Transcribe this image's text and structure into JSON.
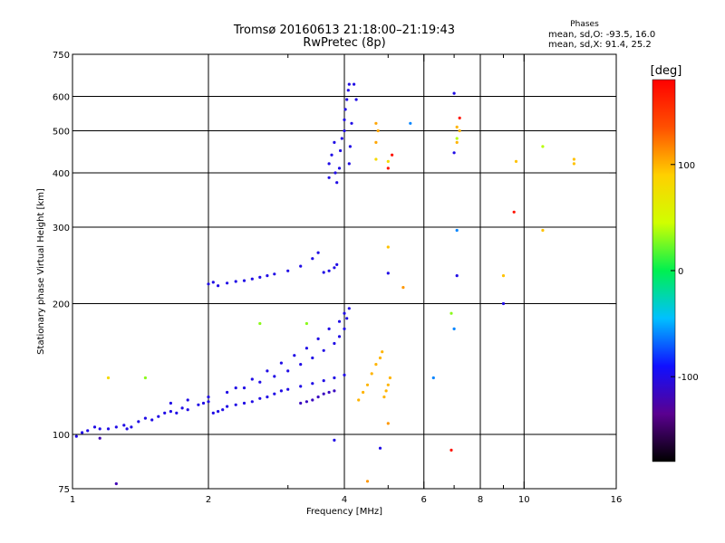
{
  "chart_data": {
    "type": "scatter",
    "title": "Tromsø 20160613 21:18:00–21:19:43",
    "subtitle": "RwPretec (8p)",
    "xlabel": "Frequency [MHz]",
    "ylabel": "Stationary phase Virtual Height [km]",
    "x_scale": "log",
    "y_scale": "log",
    "xlim": [
      1,
      16
    ],
    "ylim": [
      75,
      750
    ],
    "x_ticks": [
      1,
      2,
      4,
      6,
      8,
      10,
      16
    ],
    "x_tick_labels": [
      "1",
      "2",
      "4",
      "6",
      "8",
      "10",
      "16"
    ],
    "x_minor_ticks": [
      3,
      5,
      7,
      9
    ],
    "y_ticks": [
      75,
      100,
      200,
      300,
      400,
      500,
      600,
      750
    ],
    "y_tick_labels": [
      "75",
      "100",
      "200",
      "300",
      "400",
      "500",
      "600",
      "750"
    ],
    "grid": true,
    "grid_x": [
      2,
      4,
      6,
      8,
      10
    ],
    "grid_y": [
      100,
      200,
      300,
      400,
      500,
      600
    ],
    "phases_legend": {
      "title": "Phases",
      "o_line": "mean, sd,O: -93.5, 16.0",
      "x_line": "mean, sd,X:  91.4, 25.2"
    },
    "colorbar": {
      "label": "[deg]",
      "range": [
        -180,
        180
      ],
      "ticks": [
        -100,
        0,
        100
      ],
      "tick_labels": [
        "-100",
        "0",
        "100"
      ],
      "colors": [
        "#000000",
        "#5a0090",
        "#1010ff",
        "#00c0ff",
        "#00f050",
        "#d0ff00",
        "#ffd000",
        "#ff5000",
        "#ff0000"
      ]
    },
    "clusters": [
      {
        "phase": -100,
        "points": [
          [
            1.02,
            99
          ],
          [
            1.05,
            101
          ],
          [
            1.08,
            102
          ],
          [
            1.12,
            104
          ],
          [
            1.15,
            103
          ],
          [
            1.2,
            103
          ],
          [
            1.25,
            104
          ],
          [
            1.3,
            105
          ],
          [
            1.32,
            103
          ],
          [
            1.35,
            104
          ],
          [
            1.4,
            107
          ],
          [
            1.45,
            109
          ],
          [
            1.5,
            108
          ],
          [
            1.55,
            110
          ],
          [
            1.6,
            112
          ],
          [
            1.65,
            113
          ],
          [
            1.7,
            112
          ],
          [
            1.75,
            115
          ],
          [
            1.8,
            114
          ],
          [
            1.9,
            117
          ],
          [
            1.95,
            118
          ],
          [
            2.0,
            119
          ],
          [
            2.05,
            112
          ],
          [
            2.1,
            113
          ],
          [
            2.15,
            114
          ],
          [
            2.2,
            116
          ],
          [
            2.3,
            117
          ],
          [
            2.4,
            118
          ],
          [
            2.5,
            119
          ],
          [
            2.6,
            121
          ],
          [
            2.7,
            122
          ],
          [
            2.8,
            124
          ],
          [
            2.9,
            126
          ],
          [
            3.0,
            127
          ],
          [
            3.2,
            129
          ],
          [
            3.4,
            131
          ],
          [
            3.6,
            133
          ],
          [
            3.8,
            135
          ],
          [
            4.0,
            137
          ]
        ]
      },
      {
        "phase": -100,
        "points": [
          [
            1.65,
            118
          ],
          [
            1.8,
            120
          ],
          [
            2.0,
            122
          ],
          [
            2.2,
            125
          ],
          [
            2.4,
            128
          ],
          [
            2.6,
            132
          ],
          [
            2.8,
            136
          ],
          [
            3.0,
            140
          ],
          [
            3.2,
            145
          ],
          [
            3.4,
            150
          ],
          [
            3.6,
            156
          ],
          [
            3.8,
            162
          ],
          [
            3.9,
            168
          ],
          [
            4.0,
            175
          ],
          [
            4.05,
            185
          ],
          [
            4.1,
            195
          ]
        ]
      },
      {
        "phase": -100,
        "points": [
          [
            2.3,
            128
          ],
          [
            2.5,
            134
          ],
          [
            2.7,
            140
          ],
          [
            2.9,
            146
          ],
          [
            3.1,
            152
          ],
          [
            3.3,
            158
          ],
          [
            3.5,
            166
          ],
          [
            3.7,
            175
          ],
          [
            3.9,
            182
          ],
          [
            4.0,
            190
          ]
        ]
      },
      {
        "phase": -115,
        "points": [
          [
            3.2,
            118
          ],
          [
            3.3,
            119
          ],
          [
            3.4,
            120
          ],
          [
            3.5,
            122
          ],
          [
            3.6,
            124
          ],
          [
            3.7,
            125
          ],
          [
            3.8,
            126
          ]
        ]
      },
      {
        "phase": -100,
        "points": [
          [
            2.0,
            222
          ],
          [
            2.05,
            224
          ],
          [
            2.1,
            220
          ],
          [
            2.2,
            223
          ],
          [
            2.3,
            225
          ],
          [
            2.4,
            226
          ],
          [
            2.5,
            228
          ],
          [
            2.6,
            230
          ],
          [
            2.7,
            232
          ],
          [
            2.8,
            234
          ],
          [
            3.0,
            238
          ],
          [
            3.2,
            244
          ],
          [
            3.4,
            254
          ],
          [
            3.5,
            262
          ],
          [
            3.6,
            236
          ],
          [
            3.7,
            238
          ],
          [
            3.8,
            242
          ],
          [
            3.85,
            246
          ]
        ]
      },
      {
        "phase": -100,
        "points": [
          [
            3.7,
            390
          ],
          [
            3.7,
            420
          ],
          [
            3.75,
            440
          ],
          [
            3.8,
            470
          ],
          [
            3.82,
            400
          ],
          [
            3.85,
            380
          ],
          [
            3.9,
            410
          ],
          [
            3.92,
            450
          ],
          [
            3.95,
            480
          ],
          [
            4.0,
            500
          ],
          [
            4.0,
            530
          ],
          [
            4.02,
            560
          ],
          [
            4.05,
            590
          ],
          [
            4.08,
            620
          ],
          [
            4.1,
            640
          ],
          [
            4.1,
            420
          ],
          [
            4.12,
            460
          ],
          [
            4.15,
            520
          ],
          [
            4.2,
            640
          ]
        ]
      },
      {
        "phase": 100,
        "points": [
          [
            4.3,
            120
          ],
          [
            4.4,
            125
          ],
          [
            4.5,
            130
          ],
          [
            4.6,
            138
          ],
          [
            4.7,
            145
          ],
          [
            4.8,
            150
          ],
          [
            4.85,
            155
          ],
          [
            4.9,
            122
          ],
          [
            4.95,
            126
          ],
          [
            5.0,
            130
          ],
          [
            5.05,
            135
          ]
        ]
      },
      {
        "phase": 105,
        "points": [
          [
            4.7,
            470
          ],
          [
            4.75,
            500
          ],
          [
            4.7,
            520
          ]
        ]
      },
      {
        "phase": 100,
        "points": [
          [
            7.1,
            470
          ],
          [
            7.2,
            500
          ],
          [
            7.1,
            510
          ]
        ]
      },
      {
        "phase": 170,
        "points": [
          [
            7.2,
            535
          ],
          [
            5.1,
            440
          ],
          [
            5.0,
            410
          ],
          [
            6.9,
            92
          ],
          [
            9.5,
            325
          ]
        ]
      },
      {
        "phase": 95,
        "points": [
          [
            9.6,
            425
          ],
          [
            12.9,
            430
          ],
          [
            12.9,
            420
          ],
          [
            11.0,
            295
          ],
          [
            9.0,
            232
          ],
          [
            5.0,
            270
          ]
        ]
      },
      {
        "phase": 40,
        "points": [
          [
            11.0,
            460
          ],
          [
            7.1,
            480
          ]
        ]
      },
      {
        "phase": 30,
        "points": [
          [
            6.9,
            190
          ],
          [
            3.3,
            180
          ],
          [
            2.6,
            180
          ],
          [
            1.45,
            135
          ]
        ]
      },
      {
        "phase": -60,
        "points": [
          [
            7.1,
            295
          ],
          [
            6.3,
            135
          ],
          [
            5.6,
            520
          ],
          [
            7.0,
            175
          ]
        ]
      },
      {
        "phase": -100,
        "points": [
          [
            7.1,
            232
          ],
          [
            9.0,
            200
          ],
          [
            4.8,
            93
          ],
          [
            5.0,
            235
          ],
          [
            3.8,
            97
          ],
          [
            4.25,
            590
          ],
          [
            7.0,
            610
          ],
          [
            7.0,
            445
          ]
        ]
      },
      {
        "phase": 110,
        "points": [
          [
            5.4,
            218
          ],
          [
            4.5,
            78
          ],
          [
            5.0,
            106
          ]
        ]
      },
      {
        "phase": 80,
        "points": [
          [
            4.7,
            430
          ],
          [
            5.0,
            425
          ],
          [
            1.2,
            135
          ]
        ]
      },
      {
        "phase": -120,
        "points": [
          [
            1.25,
            77
          ],
          [
            1.15,
            98
          ]
        ]
      }
    ]
  }
}
